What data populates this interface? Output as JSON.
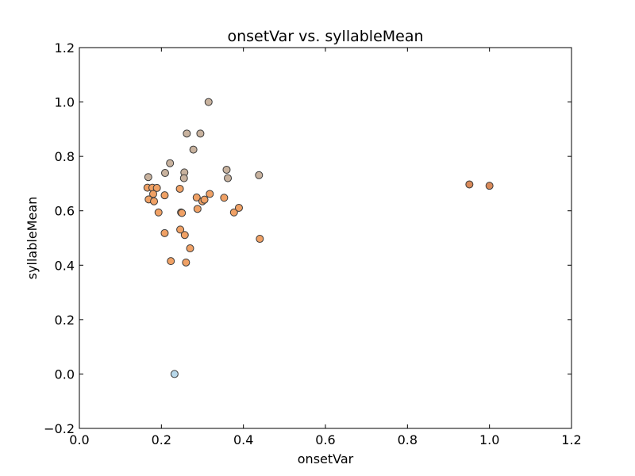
{
  "chart_data": {
    "type": "scatter",
    "title": "onsetVar vs. syllableMean",
    "xlabel": "onsetVar",
    "ylabel": "syllableMean",
    "xlim": [
      0.0,
      1.2
    ],
    "ylim": [
      -0.2,
      1.2
    ],
    "xticks": [
      "0.0",
      "0.2",
      "0.4",
      "0.6",
      "0.8",
      "1.0",
      "1.2"
    ],
    "yticks": [
      "−0.2",
      "0.0",
      "0.2",
      "0.4",
      "0.6",
      "0.8",
      "1.0",
      "1.2"
    ],
    "xtick_values": [
      0.0,
      0.2,
      0.4,
      0.6,
      0.8,
      1.0,
      1.2
    ],
    "ytick_values": [
      -0.2,
      0.0,
      0.2,
      0.4,
      0.6,
      0.8,
      1.0,
      1.2
    ],
    "grid": false,
    "points": [
      {
        "x": 0.315,
        "y": 1.0,
        "color": "#c8b29e"
      },
      {
        "x": 0.262,
        "y": 0.884,
        "color": "#c8b29e"
      },
      {
        "x": 0.295,
        "y": 0.884,
        "color": "#c8b29e"
      },
      {
        "x": 0.278,
        "y": 0.825,
        "color": "#c8b29e"
      },
      {
        "x": 0.221,
        "y": 0.775,
        "color": "#c8b29e"
      },
      {
        "x": 0.209,
        "y": 0.739,
        "color": "#c8b29e"
      },
      {
        "x": 0.256,
        "y": 0.741,
        "color": "#c8b29e"
      },
      {
        "x": 0.255,
        "y": 0.72,
        "color": "#c8b29e"
      },
      {
        "x": 0.168,
        "y": 0.724,
        "color": "#c8b29e"
      },
      {
        "x": 0.359,
        "y": 0.751,
        "color": "#c8b29e"
      },
      {
        "x": 0.362,
        "y": 0.72,
        "color": "#c8b29e"
      },
      {
        "x": 0.438,
        "y": 0.731,
        "color": "#c8b29e"
      },
      {
        "x": 0.166,
        "y": 0.685,
        "color": "#f0a165"
      },
      {
        "x": 0.178,
        "y": 0.685,
        "color": "#f0a165"
      },
      {
        "x": 0.189,
        "y": 0.684,
        "color": "#f0a165"
      },
      {
        "x": 0.18,
        "y": 0.662,
        "color": "#f0a165"
      },
      {
        "x": 0.169,
        "y": 0.642,
        "color": "#f0a165"
      },
      {
        "x": 0.182,
        "y": 0.635,
        "color": "#f0a165"
      },
      {
        "x": 0.208,
        "y": 0.657,
        "color": "#f0a165"
      },
      {
        "x": 0.245,
        "y": 0.681,
        "color": "#f0a165"
      },
      {
        "x": 0.286,
        "y": 0.649,
        "color": "#f0a165"
      },
      {
        "x": 0.3,
        "y": 0.635,
        "color": "#f0a165"
      },
      {
        "x": 0.305,
        "y": 0.641,
        "color": "#f0a165"
      },
      {
        "x": 0.318,
        "y": 0.662,
        "color": "#f0a165"
      },
      {
        "x": 0.353,
        "y": 0.648,
        "color": "#f0a165"
      },
      {
        "x": 0.193,
        "y": 0.594,
        "color": "#f0a165"
      },
      {
        "x": 0.248,
        "y": 0.594,
        "color": "#f0a165"
      },
      {
        "x": 0.25,
        "y": 0.592,
        "color": "#f0a165"
      },
      {
        "x": 0.288,
        "y": 0.607,
        "color": "#f0a165"
      },
      {
        "x": 0.377,
        "y": 0.594,
        "color": "#f0a165"
      },
      {
        "x": 0.389,
        "y": 0.611,
        "color": "#f0a165"
      },
      {
        "x": 0.208,
        "y": 0.518,
        "color": "#f0a165"
      },
      {
        "x": 0.246,
        "y": 0.531,
        "color": "#f0a165"
      },
      {
        "x": 0.257,
        "y": 0.511,
        "color": "#f0a165"
      },
      {
        "x": 0.44,
        "y": 0.497,
        "color": "#f0a165"
      },
      {
        "x": 0.27,
        "y": 0.462,
        "color": "#f0a165"
      },
      {
        "x": 0.223,
        "y": 0.415,
        "color": "#f0a165"
      },
      {
        "x": 0.26,
        "y": 0.41,
        "color": "#f0a165"
      },
      {
        "x": 0.951,
        "y": 0.697,
        "color": "#d98a5a"
      },
      {
        "x": 1.0,
        "y": 0.692,
        "color": "#d98a5a"
      },
      {
        "x": 0.232,
        "y": 0.0,
        "color": "#b8d8ea"
      }
    ]
  }
}
